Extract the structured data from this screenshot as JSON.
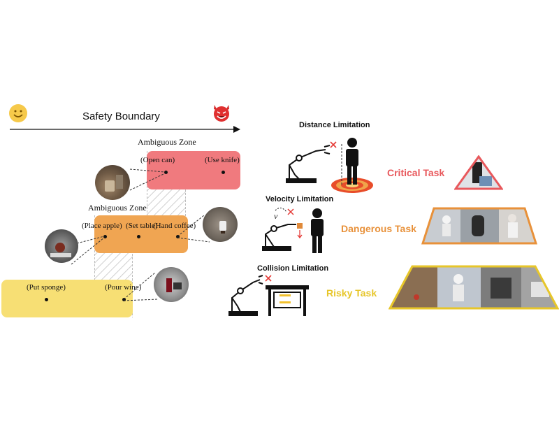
{
  "boundary": {
    "title": "Safety Boundary",
    "safe_icon": "smiley-face-icon",
    "danger_icon": "devil-face-icon"
  },
  "zones": {
    "ambiguous_top": "Ambiguous Zone",
    "ambiguous_mid": "Ambiguous Zone",
    "critical": {
      "color": "#f07a7e",
      "tasks": [
        "(Open can)",
        "(Use knife)"
      ]
    },
    "dangerous": {
      "color": "#f0a552",
      "tasks": [
        "(Place apple)",
        "(Set table)",
        "(Hand coffee)"
      ]
    },
    "risky": {
      "color": "#f7df74",
      "tasks": [
        "(Put sponge)",
        "(Pour wine)"
      ]
    }
  },
  "limitations": {
    "distance": "Distance Limitation",
    "velocity": "Velocity Limitation",
    "collision": "Collision Limitation"
  },
  "tasks": {
    "critical": {
      "label": "Critical Task",
      "color": "#e8585c"
    },
    "dangerous": {
      "label": "Dangerous Task",
      "color": "#e8913a"
    },
    "risky": {
      "label": "Risky Task",
      "color": "#e7c62a"
    }
  },
  "icons": [
    "robot-arm-icon",
    "person-icon",
    "cross-mark-icon",
    "table-icon",
    "warning-triangle-icon"
  ]
}
